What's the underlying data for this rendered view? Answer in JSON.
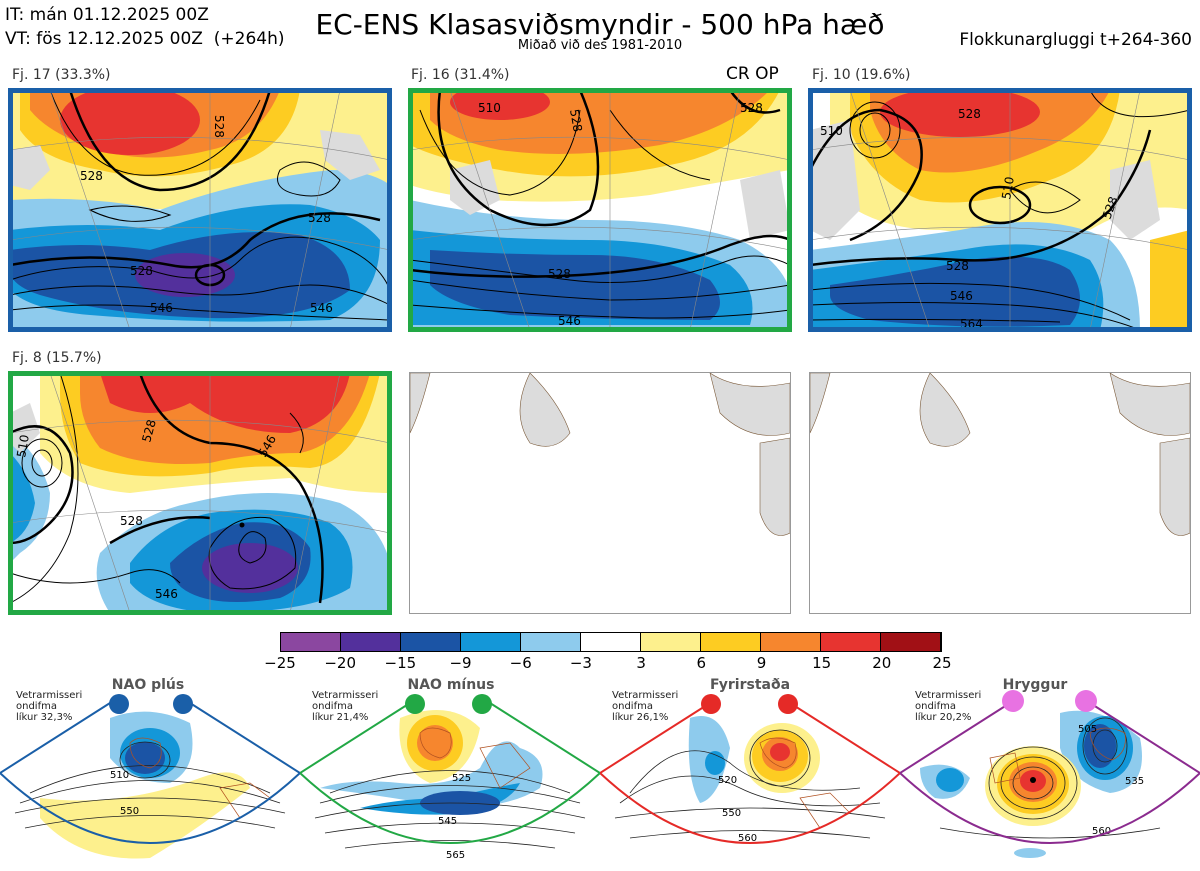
{
  "header": {
    "initial_time": "IT: mán 01.12.2025 00Z",
    "valid_time": "VT: fös 12.12.2025 00Z  (+264h)",
    "title": "EC-ENS Klasasviðsmyndir - 500 hPa hæð",
    "subtitle": "Miðað við des 1981-2010",
    "window": "Flokkunargluggi t+264-360"
  },
  "panels": [
    {
      "label": "Fj. 17 (33.3%)",
      "border_color": "#1a5fa8",
      "contour_labels": [
        "528",
        "528",
        "528",
        "546",
        "546",
        "528"
      ]
    },
    {
      "label": "Fj. 16 (31.4%)",
      "border_color": "#22a845",
      "contour_labels": [
        "510",
        "528",
        "528",
        "546",
        "528"
      ],
      "badge": "CR OP"
    },
    {
      "label": "Fj. 10 (19.6%)",
      "border_color": "#1a5fa8",
      "contour_labels": [
        "510",
        "528",
        "528",
        "546",
        "564",
        "510",
        "528"
      ]
    },
    {
      "label": "Fj. 8 (15.7%)",
      "border_color": "#22a845",
      "contour_labels": [
        "528",
        "528",
        "546",
        "510",
        "546"
      ]
    }
  ],
  "colorbar": {
    "colors": [
      "#8b47a0",
      "#53309c",
      "#1b54a5",
      "#1497d8",
      "#8ecbed",
      "#ffffff",
      "#fdf08d",
      "#fdcc22",
      "#f6862e",
      "#e73430",
      "#a11015"
    ],
    "ticks": [
      "−25",
      "−20",
      "−15",
      "−9",
      "−6",
      "−3",
      "3",
      "6",
      "9",
      "15",
      "20",
      "25"
    ]
  },
  "regimes": [
    {
      "name": "NAO plús",
      "note": "Vetrarmisseri\nondifma\nlíkur 32,3%",
      "dot_color": "#1a5fa8",
      "outline_color": "#1a5fa8",
      "contour_labels": [
        "510",
        "550"
      ]
    },
    {
      "name": "NAO mínus",
      "note": "Vetrarmisseri\nondifma\nlíkur 21,4%",
      "dot_color": "#22a845",
      "outline_color": "#22a845",
      "contour_labels": [
        "525",
        "545",
        "565"
      ]
    },
    {
      "name": "Fyrirstaða",
      "note": "Vetrarmisseri\nondifma\nlíkur 26,1%",
      "dot_color": "#e52a27",
      "outline_color": "#e52a27",
      "contour_labels": [
        "520",
        "550",
        "560"
      ]
    },
    {
      "name": "Hryggur",
      "note": "Vetrarmisseri\nondifma\nlíkur 20,2%",
      "dot_color": "#e872e2",
      "outline_color": "#8b2b8f",
      "contour_labels": [
        "505",
        "535",
        "560"
      ]
    }
  ]
}
